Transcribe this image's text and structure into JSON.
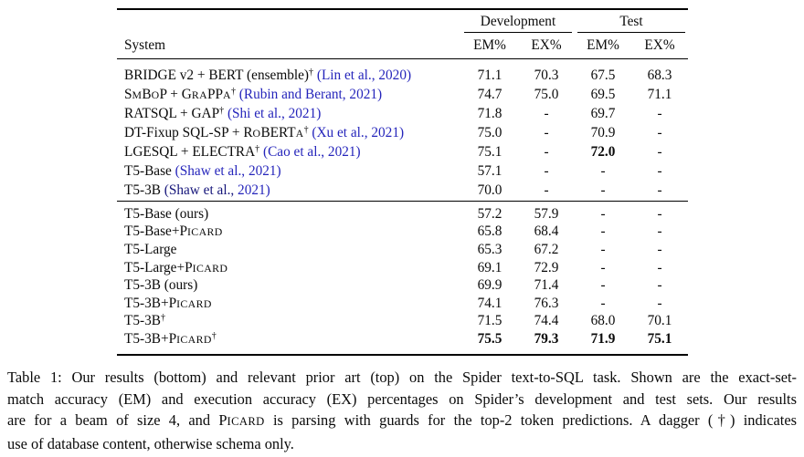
{
  "colors": {
    "citation_blue": "#2525bb",
    "citation_dark": "#15157a",
    "text": "#0a0a0a",
    "rule": "#000000",
    "background": "#ffffff"
  },
  "table": {
    "group_headers": {
      "development": "Development",
      "test": "Test"
    },
    "system_header": "System",
    "col_headers": [
      "EM%",
      "EX%",
      "EM%",
      "EX%"
    ],
    "top_rows": [
      {
        "name": [
          {
            "t": "BRIDGE v2 + BERT (ensemble)",
            "s": "p"
          },
          {
            "t": "†",
            "s": "sup"
          },
          {
            "t": " ",
            "s": "p"
          },
          {
            "t": "(Lin et al., 2020)",
            "s": "cite"
          }
        ],
        "values": [
          "71.1",
          "70.3",
          "67.5",
          "68.3"
        ],
        "bold": [
          0,
          0,
          0,
          0
        ]
      },
      {
        "name": [
          {
            "t": "S",
            "s": "p"
          },
          {
            "t": "M",
            "s": "sc"
          },
          {
            "t": "B",
            "s": "p"
          },
          {
            "t": "O",
            "s": "sc"
          },
          {
            "t": "P",
            "s": "p"
          },
          {
            "t": " + G",
            "s": "p"
          },
          {
            "t": "RA",
            "s": "sc"
          },
          {
            "t": "PP",
            "s": "p"
          },
          {
            "t": "A",
            "s": "sc"
          },
          {
            "t": "†",
            "s": "sup"
          },
          {
            "t": " ",
            "s": "p"
          },
          {
            "t": "(Rubin and Berant, 2021)",
            "s": "cite"
          }
        ],
        "values": [
          "74.7",
          "75.0",
          "69.5",
          "71.1"
        ],
        "bold": [
          0,
          0,
          0,
          0
        ]
      },
      {
        "name": [
          {
            "t": "RATSQL + GAP",
            "s": "p"
          },
          {
            "t": "†",
            "s": "sup"
          },
          {
            "t": " ",
            "s": "p"
          },
          {
            "t": "(Shi et al., 2021)",
            "s": "cite"
          }
        ],
        "values": [
          "71.8",
          "-",
          "69.7",
          "-"
        ],
        "bold": [
          0,
          0,
          0,
          0
        ]
      },
      {
        "name": [
          {
            "t": "DT-Fixup SQL-SP + R",
            "s": "p"
          },
          {
            "t": "O",
            "s": "sc"
          },
          {
            "t": "BERT",
            "s": "p"
          },
          {
            "t": "A",
            "s": "sc"
          },
          {
            "t": "†",
            "s": "sup"
          },
          {
            "t": " ",
            "s": "p"
          },
          {
            "t": "(Xu et al., 2021)",
            "s": "cite"
          }
        ],
        "values": [
          "75.0",
          "-",
          "70.9",
          "-"
        ],
        "bold": [
          0,
          0,
          0,
          0
        ]
      },
      {
        "name": [
          {
            "t": "LGESQL + ELECTRA",
            "s": "p"
          },
          {
            "t": "†",
            "s": "sup"
          },
          {
            "t": " ",
            "s": "p"
          },
          {
            "t": "(Cao et al., 2021)",
            "s": "cite"
          }
        ],
        "values": [
          "75.1",
          "-",
          "72.0",
          "-"
        ],
        "bold": [
          0,
          0,
          1,
          0
        ]
      },
      {
        "name": [
          {
            "t": "T5-Base ",
            "s": "p"
          },
          {
            "t": "(Shaw et al., 2021)",
            "s": "cite"
          }
        ],
        "values": [
          "57.1",
          "-",
          "-",
          "-"
        ],
        "bold": [
          0,
          0,
          0,
          0
        ]
      },
      {
        "name": [
          {
            "t": "T5-3B ",
            "s": "p"
          },
          {
            "t": "(Shaw et al.,",
            "s": "cite2"
          },
          {
            "t": " 2021)",
            "s": "cite"
          }
        ],
        "values": [
          "70.0",
          "-",
          "-",
          "-"
        ],
        "bold": [
          0,
          0,
          0,
          0
        ]
      }
    ],
    "bottom_rows": [
      {
        "name": [
          {
            "t": "T5-Base (ours)",
            "s": "p"
          }
        ],
        "values": [
          "57.2",
          "57.9",
          "-",
          "-"
        ],
        "bold": [
          0,
          0,
          0,
          0
        ]
      },
      {
        "name": [
          {
            "t": "T5-Base+P",
            "s": "p"
          },
          {
            "t": "ICARD",
            "s": "sc"
          }
        ],
        "values": [
          "65.8",
          "68.4",
          "-",
          "-"
        ],
        "bold": [
          0,
          0,
          0,
          0
        ]
      },
      {
        "name": [
          {
            "t": "T5-Large",
            "s": "p"
          }
        ],
        "values": [
          "65.3",
          "67.2",
          "-",
          "-"
        ],
        "bold": [
          0,
          0,
          0,
          0
        ]
      },
      {
        "name": [
          {
            "t": "T5-Large+P",
            "s": "p"
          },
          {
            "t": "ICARD",
            "s": "sc"
          }
        ],
        "values": [
          "69.1",
          "72.9",
          "-",
          "-"
        ],
        "bold": [
          0,
          0,
          0,
          0
        ]
      },
      {
        "name": [
          {
            "t": "T5-3B (ours)",
            "s": "p"
          }
        ],
        "values": [
          "69.9",
          "71.4",
          "-",
          "-"
        ],
        "bold": [
          0,
          0,
          0,
          0
        ]
      },
      {
        "name": [
          {
            "t": "T5-3B+P",
            "s": "p"
          },
          {
            "t": "ICARD",
            "s": "sc"
          }
        ],
        "values": [
          "74.1",
          "76.3",
          "-",
          "-"
        ],
        "bold": [
          0,
          0,
          0,
          0
        ]
      },
      {
        "name": [
          {
            "t": "T5-3B",
            "s": "p"
          },
          {
            "t": "†",
            "s": "sup"
          }
        ],
        "values": [
          "71.5",
          "74.4",
          "68.0",
          "70.1"
        ],
        "bold": [
          0,
          0,
          0,
          0
        ]
      },
      {
        "name": [
          {
            "t": "T5-3B+P",
            "s": "p"
          },
          {
            "t": "ICARD",
            "s": "sc"
          },
          {
            "t": "†",
            "s": "sup"
          }
        ],
        "values": [
          "75.5",
          "79.3",
          "71.9",
          "75.1"
        ],
        "bold": [
          1,
          1,
          1,
          1
        ]
      }
    ]
  },
  "caption": {
    "lines": [
      [
        {
          "t": "Table 1: Our results (bottom) and relevant prior art (top) on the Spider text-to-SQL task. Shown are the exact-set-",
          "s": "p"
        }
      ],
      [
        {
          "t": "match accuracy (EM) and execution accuracy (EX) percentages on Spider’s development and test sets. Our results",
          "s": "p"
        }
      ],
      [
        {
          "t": "are for a beam of size 4, and P",
          "s": "p"
        },
        {
          "t": "ICARD",
          "s": "sc"
        },
        {
          "t": " is parsing with guards for the top-2 token predictions. A dagger (†) indicates",
          "s": "p"
        }
      ],
      [
        {
          "t": "use of database content, otherwise schema only.",
          "s": "p"
        }
      ]
    ]
  }
}
